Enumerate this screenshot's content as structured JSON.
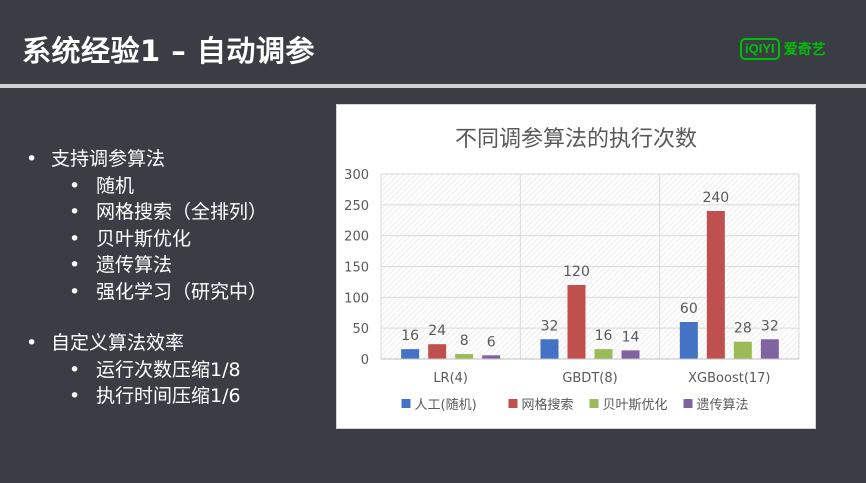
{
  "slide": {
    "title": "系统经验1 – 自动调参",
    "logo": {
      "mark": "iQIYI",
      "text": "爱奇艺",
      "color": "#00be06"
    }
  },
  "bullets": [
    {
      "label": "支持调参算法",
      "children": [
        "随机",
        "网格搜索（全排列）",
        "贝叶斯优化",
        "遗传算法",
        "强化学习（研究中）"
      ]
    },
    {
      "label": "自定义算法效率",
      "children": [
        "运行次数压缩1/8",
        "执行时间压缩1/6"
      ]
    }
  ],
  "chart_data": {
    "type": "bar",
    "title": "不同调参算法的执行次数",
    "categories": [
      "LR(4)",
      "GBDT(8)",
      "XGBoost(17)"
    ],
    "series": [
      {
        "name": "人工(随机)",
        "values": [
          16,
          32,
          60
        ],
        "color": "#4472c4"
      },
      {
        "name": "网格搜索",
        "values": [
          24,
          120,
          240
        ],
        "color": "#c0504d"
      },
      {
        "name": "贝叶斯优化",
        "values": [
          8,
          16,
          28
        ],
        "color": "#9bbb59"
      },
      {
        "name": "遗传算法",
        "values": [
          6,
          14,
          32
        ],
        "color": "#8064a2"
      }
    ],
    "ylim": [
      0,
      300
    ],
    "yticks": [
      0,
      50,
      100,
      150,
      200,
      250,
      300
    ],
    "grid": true,
    "data_labels": true,
    "legend": "bottom"
  }
}
